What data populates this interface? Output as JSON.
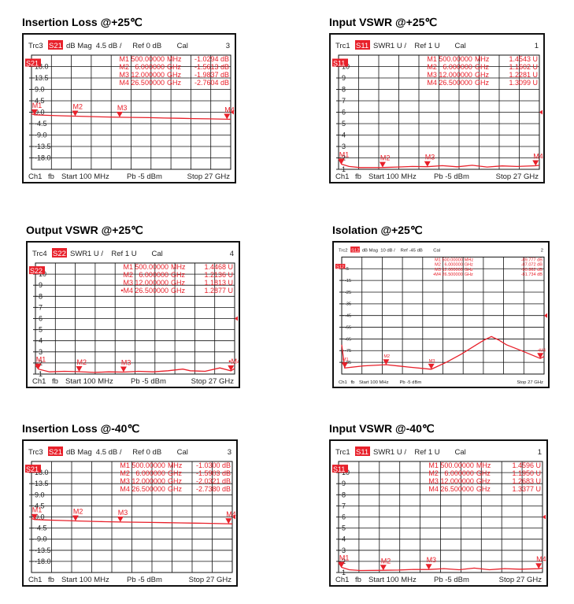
{
  "chart_data": [
    {
      "type": "line",
      "title": "Insertion Loss @+25℃",
      "header": {
        "trace": "Trc3",
        "param": "S21",
        "format": "dB Mag",
        "scale": "4.5 dB /",
        "ref": "Ref 0 dB",
        "cal": "Cal",
        "channel_no": "3"
      },
      "footer": {
        "channel": "Ch1",
        "fb": "fb",
        "start": "Start 100 MHz",
        "power": "Pb  -5 dBm",
        "stop": "Stop 27 GHz"
      },
      "ref_label": "S21",
      "yticks": [
        "18.0",
        "13.5",
        "9.0",
        "4.5",
        "0.0",
        "-4.5",
        "-9.0",
        "-13.5",
        "-18.0"
      ],
      "yvals": [
        18,
        13.5,
        9,
        4.5,
        0,
        -4.5,
        -9,
        -13.5,
        -18
      ],
      "ylim": [
        -22.5,
        22.5
      ],
      "xlim": [
        0.1,
        27
      ],
      "markers": [
        {
          "label": "M1",
          "freq": "500.00000",
          "unit": "MHz",
          "value": "-1.0294 dB",
          "x": 0.5,
          "y": -1.0294
        },
        {
          "label": "M2",
          "freq": "6.000000",
          "unit": "GHz",
          "value": "-1.5613 dB",
          "x": 6,
          "y": -1.5613
        },
        {
          "label": "M3",
          "freq": "12.000000",
          "unit": "GHz",
          "value": "-1.9837 dB",
          "x": 12,
          "y": -1.9837
        },
        {
          "label": "M4",
          "freq": "26.500000",
          "unit": "GHz",
          "value": "-2.7604 dB",
          "x": 26.5,
          "y": -2.7604
        }
      ],
      "series": [
        {
          "points": [
            [
              0.1,
              -0.6
            ],
            [
              0.5,
              -1.03
            ],
            [
              2,
              -1.2
            ],
            [
              4,
              -1.4
            ],
            [
              6,
              -1.56
            ],
            [
              8,
              -1.7
            ],
            [
              10,
              -1.85
            ],
            [
              12,
              -1.98
            ],
            [
              14,
              -2.05
            ],
            [
              16,
              -2.15
            ],
            [
              18,
              -2.3
            ],
            [
              20,
              -2.4
            ],
            [
              22,
              -2.5
            ],
            [
              24,
              -2.6
            ],
            [
              26.5,
              -2.76
            ],
            [
              27,
              -2.8
            ]
          ]
        }
      ],
      "color": "#e8202a"
    },
    {
      "type": "line",
      "title": "Input VSWR @+25℃",
      "header": {
        "trace": "Trc1",
        "param": "S11",
        "format": "SWR",
        "scale": "1 U /",
        "ref": "Ref 1 U",
        "cal": "Cal",
        "channel_no": "1"
      },
      "footer": {
        "channel": "Ch1",
        "fb": "fb",
        "start": "Start 100 MHz",
        "power": "Pb  -5 dBm",
        "stop": "Stop 27 GHz"
      },
      "ref_label": "S11",
      "yticks": [
        "10",
        "9",
        "8",
        "7",
        "6",
        "5",
        "4",
        "3",
        "2",
        "1"
      ],
      "yvals": [
        10,
        9,
        8,
        7,
        6,
        5,
        4,
        3,
        2,
        1
      ],
      "ylim": [
        1,
        11
      ],
      "xlim": [
        0.1,
        27
      ],
      "markers": [
        {
          "label": "M1",
          "freq": "500.00000",
          "unit": "MHz",
          "value": "1.4543 U",
          "x": 0.5,
          "y": 1.4543
        },
        {
          "label": "M2",
          "freq": "6.000000",
          "unit": "GHz",
          "value": "1.1602 U",
          "x": 6,
          "y": 1.1602
        },
        {
          "label": "M3",
          "freq": "12.000000",
          "unit": "GHz",
          "value": "1.2281 U",
          "x": 12,
          "y": 1.2281
        },
        {
          "label": "M4",
          "freq": "26.500000",
          "unit": "GHz",
          "value": "1.3099 U",
          "x": 26.5,
          "y": 1.3099
        }
      ],
      "series": [
        {
          "points": [
            [
              0.1,
              1.9
            ],
            [
              0.5,
              1.45
            ],
            [
              1.5,
              1.25
            ],
            [
              3,
              1.15
            ],
            [
              6,
              1.16
            ],
            [
              8,
              1.2
            ],
            [
              10,
              1.25
            ],
            [
              12,
              1.23
            ],
            [
              14,
              1.32
            ],
            [
              16,
              1.22
            ],
            [
              18,
              1.35
            ],
            [
              20,
              1.2
            ],
            [
              22,
              1.3
            ],
            [
              24,
              1.25
            ],
            [
              26.5,
              1.31
            ],
            [
              27,
              1.35
            ]
          ]
        }
      ],
      "color": "#e8202a"
    },
    {
      "type": "line",
      "title": "Output VSWR @+25℃",
      "header": {
        "trace": "Trc4",
        "param": "S22",
        "format": "SWR",
        "scale": "1 U /",
        "ref": "Ref 1 U",
        "cal": "Cal",
        "channel_no": "4"
      },
      "footer": {
        "channel": "Ch1",
        "fb": "fb",
        "start": "Start 100 MHz",
        "power": "Pb  -5 dBm",
        "stop": "Stop 27 GHz"
      },
      "ref_label": "S22",
      "yticks": [
        "10",
        "9",
        "8",
        "7",
        "6",
        "5",
        "4",
        "3",
        "2",
        "1"
      ],
      "yvals": [
        10,
        9,
        8,
        7,
        6,
        5,
        4,
        3,
        2,
        1
      ],
      "ylim": [
        1,
        11
      ],
      "xlim": [
        0.1,
        27
      ],
      "markers": [
        {
          "label": "M1",
          "freq": "500.00000",
          "unit": "MHz",
          "value": "1.4468 U",
          "x": 0.5,
          "y": 1.4468
        },
        {
          "label": "M2",
          "freq": "6.000000",
          "unit": "GHz",
          "value": "1.2136 U",
          "x": 6,
          "y": 1.2136
        },
        {
          "label": "M3",
          "freq": "12.000000",
          "unit": "GHz",
          "value": "1.1813 U",
          "x": 12,
          "y": 1.1813
        },
        {
          "label": "•M4",
          "freq": "26.500000",
          "unit": "GHz",
          "value": "1.2877 U",
          "x": 26.5,
          "y": 1.2877
        }
      ],
      "series": [
        {
          "points": [
            [
              0.1,
              1.8
            ],
            [
              0.5,
              1.45
            ],
            [
              2,
              1.2
            ],
            [
              4,
              1.25
            ],
            [
              6,
              1.21
            ],
            [
              8,
              1.15
            ],
            [
              10,
              1.2
            ],
            [
              12,
              1.18
            ],
            [
              14,
              1.25
            ],
            [
              16,
              1.2
            ],
            [
              18,
              1.3
            ],
            [
              20,
              1.45
            ],
            [
              21,
              1.3
            ],
            [
              23,
              1.25
            ],
            [
              25,
              1.55
            ],
            [
              26.5,
              1.29
            ],
            [
              27,
              1.5
            ]
          ]
        }
      ],
      "color": "#e8202a"
    },
    {
      "type": "line",
      "title": "Isolation @+25℃",
      "header": {
        "trace": "Trc2",
        "param": "S12",
        "format": "dB Mag",
        "scale": "10 dB /",
        "ref": "Ref -45 dB",
        "cal": "Cal",
        "channel_no": "2"
      },
      "footer": {
        "channel": "Ch1",
        "fb": "fb",
        "start": "Start 100 MHz",
        "power": "Pb  -5 dBm",
        "stop": "Stop 27 GHz"
      },
      "ref_label": "S12",
      "yticks": [
        "-5",
        "-15",
        "-25",
        "-35",
        "-45",
        "-55",
        "-65",
        "-75",
        "-85"
      ],
      "yvals": [
        -5,
        -15,
        -25,
        -35,
        -45,
        -55,
        -65,
        -75,
        -85
      ],
      "ylim": [
        -95,
        5
      ],
      "xlim": [
        0.1,
        27
      ],
      "markers": [
        {
          "label": "M1",
          "freq": "500.00000",
          "unit": "MHz",
          "value": "-89.777 dB",
          "x": 0.5,
          "y": -89.777
        },
        {
          "label": "M2",
          "freq": "6.000000",
          "unit": "GHz",
          "value": "-87.072 dB",
          "x": 6,
          "y": -87.072
        },
        {
          "label": "M3",
          "freq": "12.000000",
          "unit": "GHz",
          "value": "-90.862 dB",
          "x": 12,
          "y": -90.862
        },
        {
          "label": "•M4",
          "freq": "26.500000",
          "unit": "GHz",
          "value": "-81.734 dB",
          "x": 26.5,
          "y": -81.734
        }
      ],
      "series": [
        {
          "points": [
            [
              0.1,
              -70
            ],
            [
              0.5,
              -89.8
            ],
            [
              3,
              -88
            ],
            [
              6,
              -87
            ],
            [
              9,
              -89
            ],
            [
              12,
              -90.9
            ],
            [
              14,
              -85
            ],
            [
              16,
              -78
            ],
            [
              18,
              -70
            ],
            [
              19,
              -66
            ],
            [
              20,
              -63
            ],
            [
              21,
              -66
            ],
            [
              22,
              -70
            ],
            [
              24,
              -75
            ],
            [
              26.5,
              -81.7
            ],
            [
              27,
              -80
            ]
          ]
        }
      ],
      "color": "#e8202a"
    },
    {
      "type": "line",
      "title": "Insertion Loss @-40℃",
      "header": {
        "trace": "Trc3",
        "param": "S21",
        "format": "dB Mag",
        "scale": "4.5 dB /",
        "ref": "Ref 0 dB",
        "cal": "Cal",
        "channel_no": "3"
      },
      "footer": {
        "channel": "Ch1",
        "fb": "fb",
        "start": "Start 100 MHz",
        "power": "Pb  -5 dBm",
        "stop": "Stop 27 GHz"
      },
      "ref_label": "S21",
      "yticks": [
        "18.0",
        "13.5",
        "9.0",
        "4.5",
        "0.0",
        "-4.5",
        "-9.0",
        "-13.5",
        "-18.0"
      ],
      "yvals": [
        18,
        13.5,
        9,
        4.5,
        0,
        -4.5,
        -9,
        -13.5,
        -18
      ],
      "ylim": [
        -22.5,
        22.5
      ],
      "xlim": [
        0.1,
        27
      ],
      "markers": [
        {
          "label": "M1",
          "freq": "500.00000",
          "unit": "MHz",
          "value": "-1.0300 dB",
          "x": 0.5,
          "y": -1.03
        },
        {
          "label": "M2",
          "freq": "6.000000",
          "unit": "GHz",
          "value": "-1.5903 dB",
          "x": 6,
          "y": -1.5903
        },
        {
          "label": "M3",
          "freq": "12.000000",
          "unit": "GHz",
          "value": "-2.0321 dB",
          "x": 12,
          "y": -2.0321
        },
        {
          "label": "M4",
          "freq": "26.500000",
          "unit": "GHz",
          "value": "-2.7380 dB",
          "x": 26.5,
          "y": -2.738
        }
      ],
      "series": [
        {
          "points": [
            [
              0.1,
              -0.6
            ],
            [
              0.5,
              -1.03
            ],
            [
              2,
              -1.2
            ],
            [
              4,
              -1.42
            ],
            [
              6,
              -1.59
            ],
            [
              8,
              -1.75
            ],
            [
              10,
              -1.9
            ],
            [
              12,
              -2.03
            ],
            [
              14,
              -2.1
            ],
            [
              16,
              -2.2
            ],
            [
              18,
              -2.3
            ],
            [
              20,
              -2.4
            ],
            [
              22,
              -2.5
            ],
            [
              24,
              -2.6
            ],
            [
              26.5,
              -2.74
            ],
            [
              27,
              -2.8
            ]
          ]
        }
      ],
      "color": "#e8202a"
    },
    {
      "type": "line",
      "title": "Input VSWR @-40℃",
      "header": {
        "trace": "Trc1",
        "param": "S11",
        "format": "SWR",
        "scale": "1 U /",
        "ref": "Ref 1 U",
        "cal": "Cal",
        "channel_no": "1"
      },
      "footer": {
        "channel": "Ch1",
        "fb": "fb",
        "start": "Start 100 MHz",
        "power": "Pb  -5 dBm",
        "stop": "Stop 27 GHz"
      },
      "ref_label": "S11",
      "yticks": [
        "10",
        "9",
        "8",
        "7",
        "6",
        "5",
        "4",
        "3",
        "2",
        "1"
      ],
      "yvals": [
        10,
        9,
        8,
        7,
        6,
        5,
        4,
        3,
        2,
        1
      ],
      "ylim": [
        1,
        11
      ],
      "xlim": [
        0.1,
        27
      ],
      "markers": [
        {
          "label": "M1",
          "freq": "500.00000",
          "unit": "MHz",
          "value": "1.4596 U",
          "x": 0.5,
          "y": 1.4596
        },
        {
          "label": "M2",
          "freq": "6.000000",
          "unit": "GHz",
          "value": "1.1950 U",
          "x": 6,
          "y": 1.195
        },
        {
          "label": "M3",
          "freq": "12.000000",
          "unit": "GHz",
          "value": "1.2683 U",
          "x": 12,
          "y": 1.2683
        },
        {
          "label": "M4",
          "freq": "26.500000",
          "unit": "GHz",
          "value": "1.3377 U",
          "x": 26.5,
          "y": 1.3377
        }
      ],
      "series": [
        {
          "points": [
            [
              0.1,
              1.9
            ],
            [
              0.5,
              1.46
            ],
            [
              1.5,
              1.25
            ],
            [
              3,
              1.18
            ],
            [
              6,
              1.2
            ],
            [
              8,
              1.22
            ],
            [
              10,
              1.28
            ],
            [
              12,
              1.27
            ],
            [
              14,
              1.35
            ],
            [
              16,
              1.25
            ],
            [
              18,
              1.4
            ],
            [
              20,
              1.25
            ],
            [
              22,
              1.35
            ],
            [
              24,
              1.3
            ],
            [
              26.5,
              1.34
            ],
            [
              27,
              1.4
            ]
          ]
        }
      ],
      "color": "#e8202a"
    }
  ]
}
